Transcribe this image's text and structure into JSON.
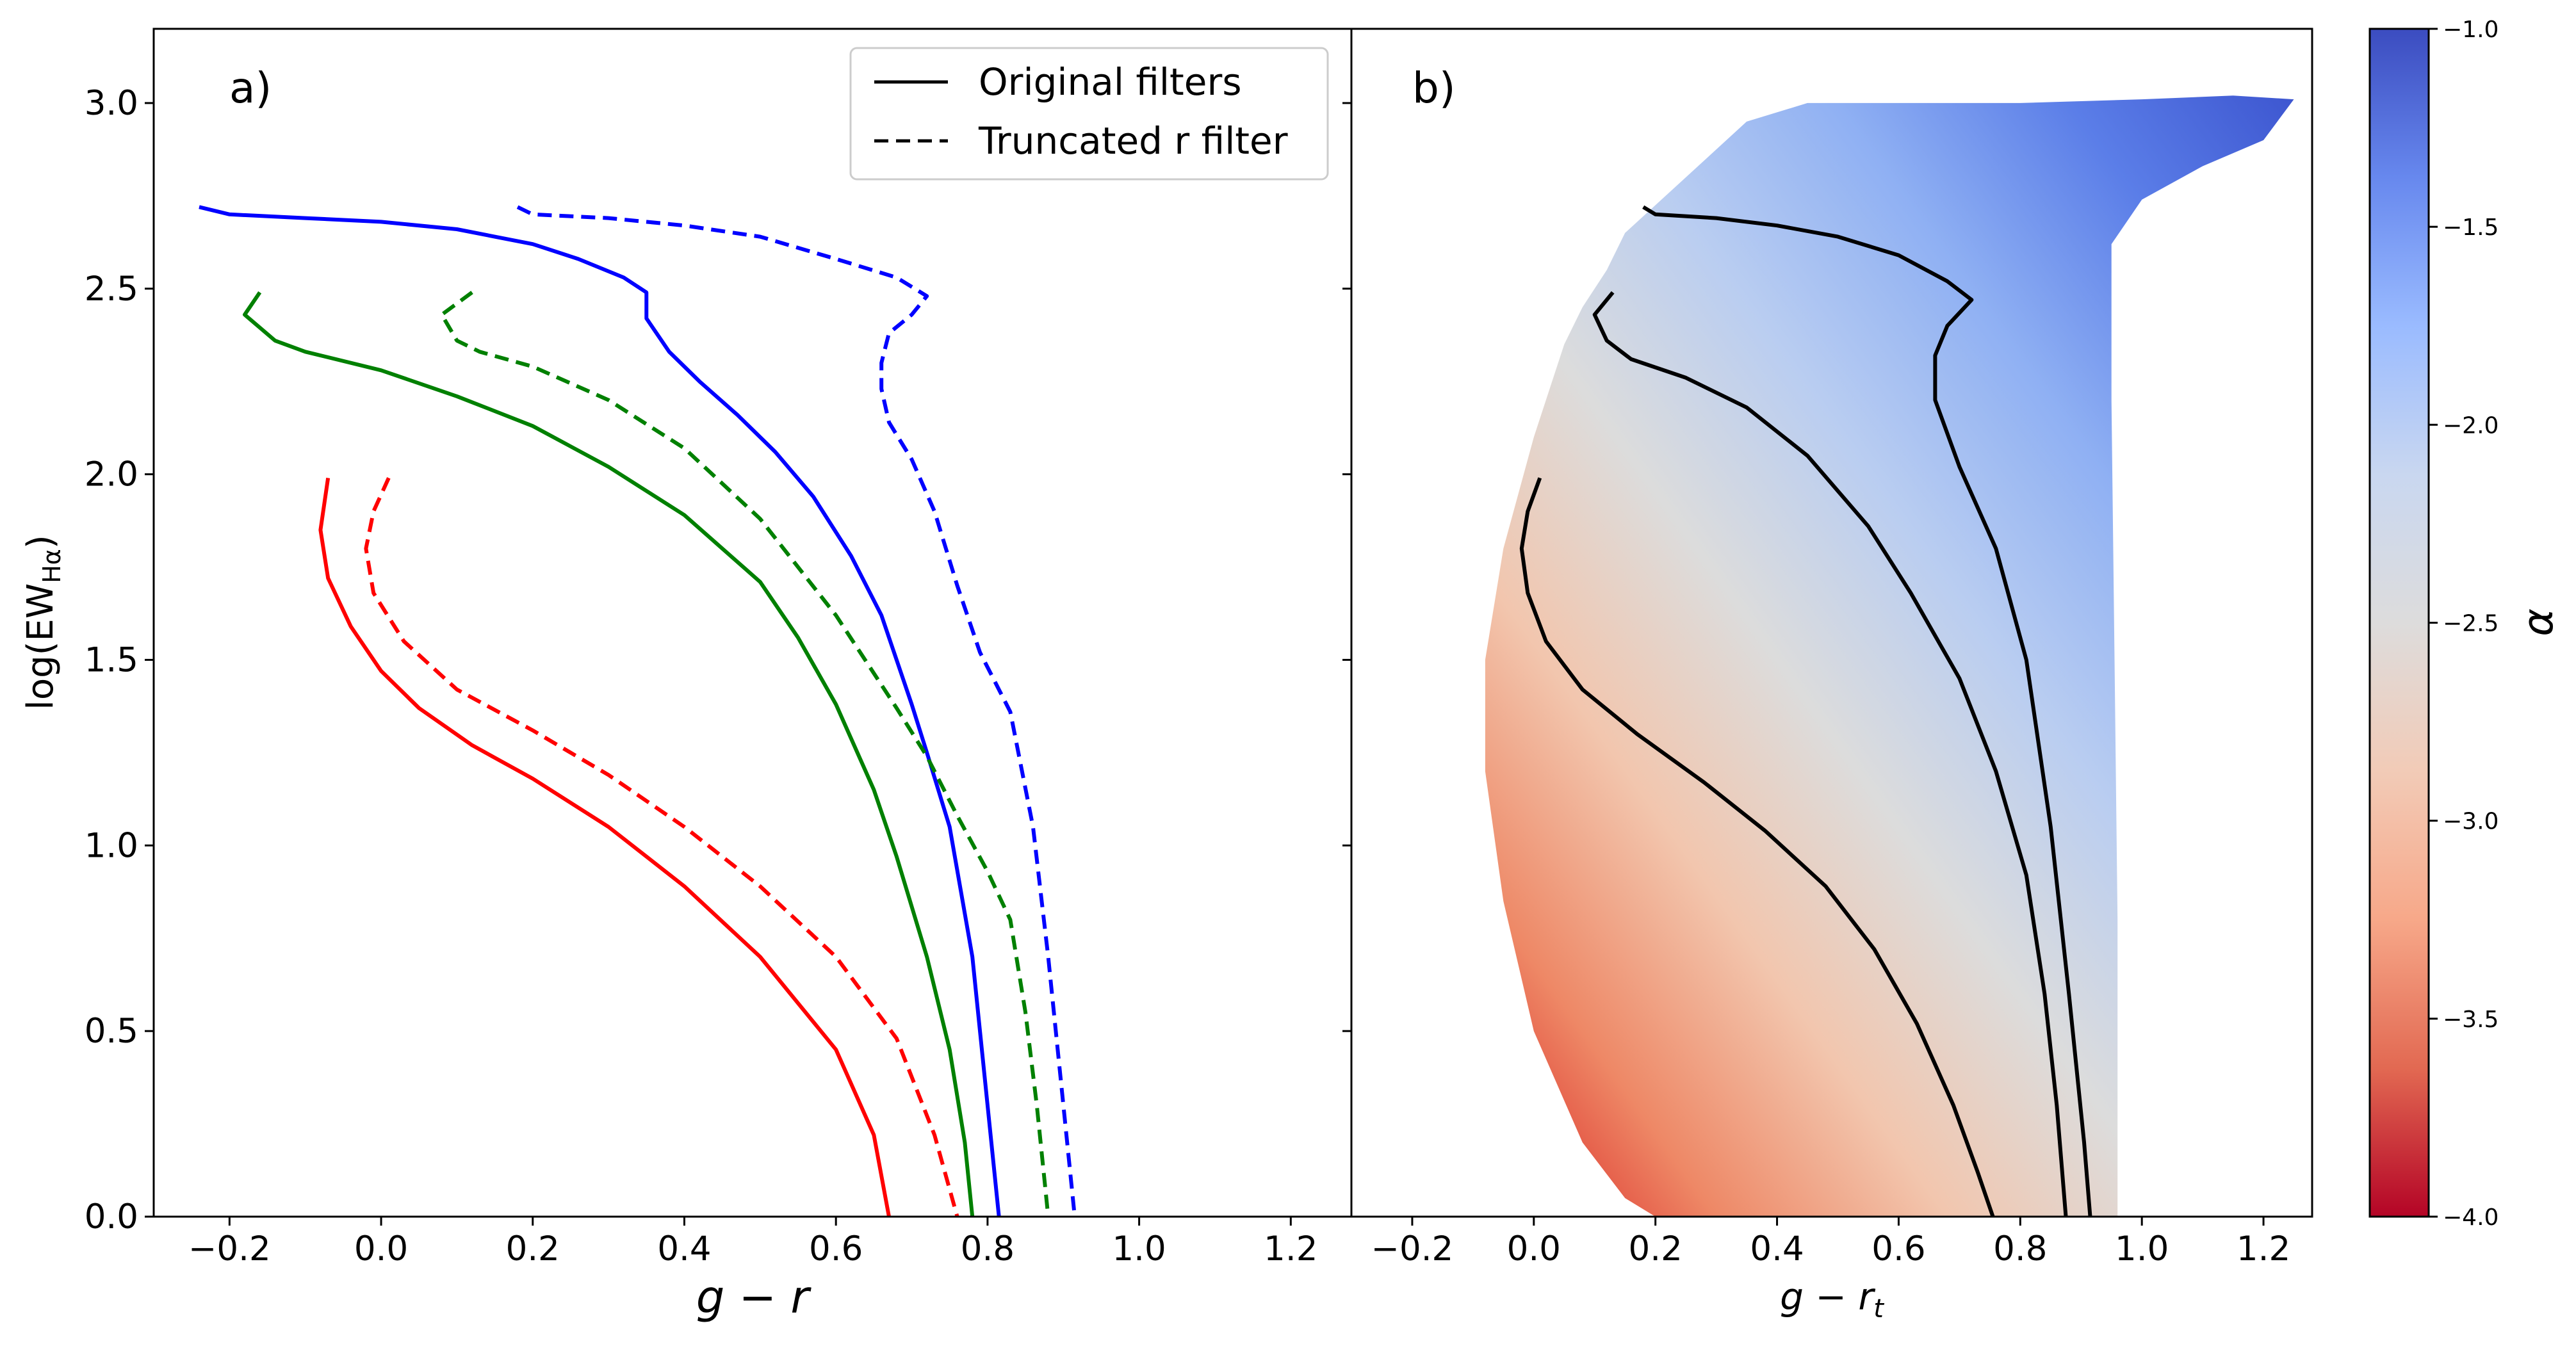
{
  "chart_data": [
    {
      "type": "line",
      "panel_label": "a)",
      "title": "",
      "xlabel": "g − r",
      "ylabel": "log(EW",
      "ylabel_sub": "Hα",
      "ylabel_close": ")",
      "xlim": [
        -0.3,
        1.28
      ],
      "ylim": [
        0.0,
        3.2
      ],
      "xticks": [
        "−0.2",
        "0.0",
        "0.2",
        "0.4",
        "0.6",
        "0.8",
        "1.0",
        "1.2"
      ],
      "yticks": [
        "0.0",
        "0.5",
        "1.0",
        "1.5",
        "2.0",
        "2.5",
        "3.0"
      ],
      "legend": {
        "position": "upper-right",
        "entries": [
          {
            "label": "Original filters",
            "style": "solid"
          },
          {
            "label": "Truncated r filter",
            "style": "dashed"
          }
        ]
      },
      "series": [
        {
          "name": "blue-original",
          "color": "#0000ff",
          "style": "solid",
          "points": [
            [
              -0.24,
              2.72
            ],
            [
              -0.2,
              2.7
            ],
            [
              -0.1,
              2.69
            ],
            [
              0.0,
              2.68
            ],
            [
              0.1,
              2.66
            ],
            [
              0.2,
              2.62
            ],
            [
              0.26,
              2.58
            ],
            [
              0.32,
              2.53
            ],
            [
              0.35,
              2.49
            ],
            [
              0.35,
              2.42
            ],
            [
              0.38,
              2.33
            ],
            [
              0.42,
              2.25
            ],
            [
              0.47,
              2.16
            ],
            [
              0.52,
              2.06
            ],
            [
              0.57,
              1.94
            ],
            [
              0.62,
              1.78
            ],
            [
              0.66,
              1.62
            ],
            [
              0.7,
              1.38
            ],
            [
              0.72,
              1.25
            ],
            [
              0.75,
              1.05
            ],
            [
              0.78,
              0.7
            ],
            [
              0.8,
              0.3
            ],
            [
              0.815,
              0.0
            ]
          ]
        },
        {
          "name": "blue-truncated",
          "color": "#0000ff",
          "style": "dashed",
          "points": [
            [
              0.18,
              2.72
            ],
            [
              0.2,
              2.7
            ],
            [
              0.3,
              2.69
            ],
            [
              0.4,
              2.67
            ],
            [
              0.5,
              2.64
            ],
            [
              0.6,
              2.58
            ],
            [
              0.68,
              2.53
            ],
            [
              0.72,
              2.48
            ],
            [
              0.7,
              2.43
            ],
            [
              0.67,
              2.38
            ],
            [
              0.66,
              2.3
            ],
            [
              0.66,
              2.23
            ],
            [
              0.67,
              2.14
            ],
            [
              0.7,
              2.04
            ],
            [
              0.73,
              1.9
            ],
            [
              0.76,
              1.7
            ],
            [
              0.79,
              1.52
            ],
            [
              0.83,
              1.36
            ],
            [
              0.86,
              1.05
            ],
            [
              0.88,
              0.7
            ],
            [
              0.9,
              0.3
            ],
            [
              0.915,
              0.0
            ]
          ]
        },
        {
          "name": "green-original",
          "color": "#008000",
          "style": "solid",
          "points": [
            [
              -0.16,
              2.49
            ],
            [
              -0.18,
              2.43
            ],
            [
              -0.14,
              2.36
            ],
            [
              -0.1,
              2.33
            ],
            [
              0.0,
              2.28
            ],
            [
              0.1,
              2.21
            ],
            [
              0.2,
              2.13
            ],
            [
              0.3,
              2.02
            ],
            [
              0.4,
              1.89
            ],
            [
              0.5,
              1.71
            ],
            [
              0.55,
              1.56
            ],
            [
              0.6,
              1.38
            ],
            [
              0.65,
              1.15
            ],
            [
              0.68,
              0.97
            ],
            [
              0.72,
              0.7
            ],
            [
              0.75,
              0.45
            ],
            [
              0.77,
              0.2
            ],
            [
              0.78,
              0.0
            ]
          ]
        },
        {
          "name": "green-truncated",
          "color": "#008000",
          "style": "dashed",
          "points": [
            [
              0.12,
              2.49
            ],
            [
              0.08,
              2.43
            ],
            [
              0.1,
              2.36
            ],
            [
              0.13,
              2.33
            ],
            [
              0.2,
              2.29
            ],
            [
              0.3,
              2.2
            ],
            [
              0.4,
              2.07
            ],
            [
              0.5,
              1.88
            ],
            [
              0.6,
              1.62
            ],
            [
              0.68,
              1.37
            ],
            [
              0.72,
              1.24
            ],
            [
              0.76,
              1.08
            ],
            [
              0.8,
              0.93
            ],
            [
              0.83,
              0.8
            ],
            [
              0.85,
              0.55
            ],
            [
              0.865,
              0.3
            ],
            [
              0.875,
              0.1
            ],
            [
              0.88,
              0.0
            ]
          ]
        },
        {
          "name": "red-original",
          "color": "#ff0000",
          "style": "solid",
          "points": [
            [
              -0.07,
              1.99
            ],
            [
              -0.08,
              1.85
            ],
            [
              -0.07,
              1.72
            ],
            [
              -0.04,
              1.59
            ],
            [
              0.0,
              1.47
            ],
            [
              0.05,
              1.37
            ],
            [
              0.12,
              1.27
            ],
            [
              0.2,
              1.18
            ],
            [
              0.3,
              1.05
            ],
            [
              0.4,
              0.89
            ],
            [
              0.5,
              0.7
            ],
            [
              0.6,
              0.45
            ],
            [
              0.65,
              0.22
            ],
            [
              0.67,
              0.0
            ]
          ]
        },
        {
          "name": "red-truncated",
          "color": "#ff0000",
          "style": "dashed",
          "points": [
            [
              0.01,
              1.99
            ],
            [
              -0.01,
              1.9
            ],
            [
              -0.02,
              1.8
            ],
            [
              -0.01,
              1.68
            ],
            [
              0.03,
              1.55
            ],
            [
              0.1,
              1.42
            ],
            [
              0.2,
              1.31
            ],
            [
              0.3,
              1.19
            ],
            [
              0.4,
              1.05
            ],
            [
              0.5,
              0.89
            ],
            [
              0.6,
              0.7
            ],
            [
              0.68,
              0.48
            ],
            [
              0.73,
              0.22
            ],
            [
              0.76,
              0.0
            ]
          ]
        }
      ]
    },
    {
      "type": "line",
      "panel_label": "b)",
      "title": "",
      "xlabel": "g − r",
      "xlabel_sub": "t",
      "xlim": [
        -0.3,
        1.28
      ],
      "ylim": [
        0.0,
        3.2
      ],
      "xticks": [
        "−0.2",
        "0.0",
        "0.2",
        "0.4",
        "0.6",
        "0.8",
        "1.0",
        "1.2"
      ],
      "colormap": "coolwarm",
      "fill_region": {
        "top_edge": [
          [
            0.2,
            0.0
          ],
          [
            0.15,
            0.05
          ],
          [
            0.08,
            0.2
          ],
          [
            0.0,
            0.5
          ],
          [
            -0.05,
            0.85
          ],
          [
            -0.08,
            1.2
          ],
          [
            -0.08,
            1.5
          ],
          [
            -0.05,
            1.8
          ],
          [
            0.0,
            2.1
          ],
          [
            0.05,
            2.35
          ],
          [
            0.08,
            2.45
          ],
          [
            0.12,
            2.55
          ],
          [
            0.15,
            2.65
          ],
          [
            0.25,
            2.8
          ],
          [
            0.35,
            2.95
          ],
          [
            0.45,
            3.0
          ],
          [
            0.6,
            3.0
          ],
          [
            0.8,
            3.0
          ],
          [
            1.0,
            3.01
          ],
          [
            1.15,
            3.02
          ],
          [
            1.25,
            3.01
          ],
          [
            1.2,
            2.9
          ],
          [
            1.1,
            2.83
          ],
          [
            1.0,
            2.74
          ],
          [
            0.95,
            2.62
          ],
          [
            0.95,
            2.2
          ],
          [
            0.955,
            1.5
          ],
          [
            0.96,
            0.8
          ],
          [
            0.96,
            0.0
          ]
        ],
        "colors": [
          "#d7191c",
          "#ee8866",
          "#f2c6ae",
          "#dcdcdc",
          "#b9cdf1",
          "#8fb0f3",
          "#5b7ee8",
          "#3d56d0"
        ]
      },
      "series": [
        {
          "name": "black-outer",
          "color": "#000000",
          "style": "solid",
          "points": [
            [
              0.18,
              2.72
            ],
            [
              0.2,
              2.7
            ],
            [
              0.3,
              2.69
            ],
            [
              0.4,
              2.67
            ],
            [
              0.5,
              2.64
            ],
            [
              0.6,
              2.59
            ],
            [
              0.68,
              2.52
            ],
            [
              0.72,
              2.47
            ],
            [
              0.68,
              2.4
            ],
            [
              0.66,
              2.32
            ],
            [
              0.66,
              2.2
            ],
            [
              0.7,
              2.02
            ],
            [
              0.76,
              1.8
            ],
            [
              0.81,
              1.5
            ],
            [
              0.85,
              1.05
            ],
            [
              0.88,
              0.6
            ],
            [
              0.905,
              0.2
            ],
            [
              0.915,
              0.0
            ]
          ]
        },
        {
          "name": "black-middle",
          "color": "#000000",
          "style": "solid",
          "points": [
            [
              0.13,
              2.49
            ],
            [
              0.1,
              2.43
            ],
            [
              0.12,
              2.36
            ],
            [
              0.16,
              2.31
            ],
            [
              0.25,
              2.26
            ],
            [
              0.35,
              2.18
            ],
            [
              0.45,
              2.05
            ],
            [
              0.55,
              1.86
            ],
            [
              0.62,
              1.68
            ],
            [
              0.7,
              1.45
            ],
            [
              0.76,
              1.2
            ],
            [
              0.81,
              0.92
            ],
            [
              0.84,
              0.6
            ],
            [
              0.86,
              0.3
            ],
            [
              0.875,
              0.0
            ]
          ]
        },
        {
          "name": "black-inner",
          "color": "#000000",
          "style": "solid",
          "points": [
            [
              0.01,
              1.99
            ],
            [
              -0.01,
              1.9
            ],
            [
              -0.02,
              1.8
            ],
            [
              -0.01,
              1.68
            ],
            [
              0.02,
              1.55
            ],
            [
              0.08,
              1.42
            ],
            [
              0.17,
              1.3
            ],
            [
              0.28,
              1.17
            ],
            [
              0.38,
              1.04
            ],
            [
              0.48,
              0.89
            ],
            [
              0.56,
              0.72
            ],
            [
              0.63,
              0.52
            ],
            [
              0.69,
              0.3
            ],
            [
              0.73,
              0.12
            ],
            [
              0.755,
              0.0
            ]
          ]
        }
      ]
    }
  ],
  "colorbar": {
    "label": "α",
    "range": [
      -4.0,
      -1.0
    ],
    "ticks": [
      "−1.0",
      "−1.5",
      "−2.0",
      "−2.5",
      "−3.0",
      "−3.5",
      "−4.0"
    ],
    "colors": [
      "#3b4cc0",
      "#6788ee",
      "#9abbff",
      "#c9d7f0",
      "#dddcdc",
      "#f2cbb7",
      "#f7a889",
      "#e26952",
      "#b40426"
    ]
  }
}
